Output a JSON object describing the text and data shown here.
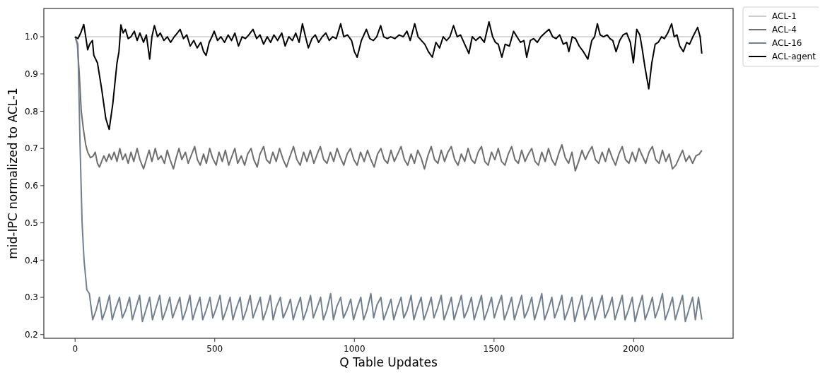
{
  "chart_data": {
    "type": "line",
    "xlabel": "Q Table Updates",
    "ylabel": "mid-IPC normalized to ACL-1",
    "xlim": [
      -112,
      2356
    ],
    "ylim": [
      0.19,
      1.076
    ],
    "xticks": [
      0,
      500,
      1000,
      1500,
      2000
    ],
    "yticks": [
      0.2,
      0.3,
      0.4,
      0.5,
      0.6,
      0.7,
      0.8,
      0.9,
      {
        "value": 1,
        "label": "1.0"
      }
    ],
    "grid": false,
    "legend": "top right",
    "marker": "none",
    "line_style": "solid",
    "series": [
      {
        "name": "ACL-1",
        "color": "#cccccc",
        "x": [
          0,
          2244
        ],
        "values": [
          1,
          1
        ]
      },
      {
        "name": "ACL-4",
        "color": "#6e6e6e",
        "x": [
          0,
          8,
          15,
          22,
          30,
          38,
          45,
          55,
          65,
          72,
          80,
          87,
          95,
          103,
          112,
          122,
          130,
          140,
          150,
          160,
          170,
          180,
          190,
          200,
          210,
          222,
          232,
          245,
          255,
          265,
          275,
          287,
          297,
          308,
          320,
          330,
          340,
          352,
          362,
          372,
          382,
          395,
          405,
          415,
          428,
          438,
          448,
          460,
          470,
          482,
          492,
          505,
          515,
          527,
          538,
          550,
          562,
          572,
          582,
          595,
          607,
          618,
          630,
          640,
          652,
          662,
          675,
          685,
          697,
          708,
          720,
          732,
          745,
          757,
          770,
          782,
          794,
          806,
          818,
          830,
          842,
          855,
          867,
          878,
          890,
          902,
          914,
          926,
          938,
          950,
          962,
          974,
          986,
          998,
          1010,
          1022,
          1035,
          1047,
          1059,
          1071,
          1083,
          1095,
          1107,
          1119,
          1131,
          1143,
          1155,
          1167,
          1179,
          1191,
          1203,
          1215,
          1227,
          1239,
          1251,
          1263,
          1275,
          1287,
          1299,
          1311,
          1323,
          1335,
          1347,
          1359,
          1371,
          1383,
          1395,
          1407,
          1419,
          1431,
          1443,
          1455,
          1467,
          1479,
          1491,
          1503,
          1515,
          1527,
          1539,
          1551,
          1563,
          1575,
          1587,
          1599,
          1611,
          1623,
          1635,
          1647,
          1659,
          1671,
          1683,
          1695,
          1707,
          1719,
          1731,
          1743,
          1755,
          1767,
          1779,
          1791,
          1803,
          1815,
          1827,
          1839,
          1851,
          1863,
          1875,
          1887,
          1899,
          1911,
          1923,
          1935,
          1947,
          1959,
          1971,
          1983,
          1995,
          2007,
          2019,
          2031,
          2043,
          2055,
          2067,
          2079,
          2091,
          2103,
          2115,
          2127,
          2139,
          2151,
          2163,
          2175,
          2187,
          2199,
          2211,
          2223,
          2235,
          2244
        ],
        "values": [
          1,
          0.98,
          0.9,
          0.8,
          0.75,
          0.71,
          0.69,
          0.675,
          0.68,
          0.69,
          0.66,
          0.65,
          0.665,
          0.68,
          0.665,
          0.685,
          0.67,
          0.69,
          0.665,
          0.7,
          0.67,
          0.685,
          0.66,
          0.69,
          0.665,
          0.7,
          0.67,
          0.645,
          0.67,
          0.695,
          0.665,
          0.7,
          0.67,
          0.68,
          0.66,
          0.695,
          0.67,
          0.645,
          0.675,
          0.7,
          0.67,
          0.69,
          0.66,
          0.68,
          0.705,
          0.67,
          0.655,
          0.685,
          0.66,
          0.7,
          0.675,
          0.655,
          0.69,
          0.665,
          0.695,
          0.655,
          0.68,
          0.7,
          0.66,
          0.68,
          0.655,
          0.685,
          0.7,
          0.67,
          0.65,
          0.685,
          0.705,
          0.67,
          0.66,
          0.69,
          0.665,
          0.7,
          0.67,
          0.65,
          0.68,
          0.705,
          0.67,
          0.655,
          0.69,
          0.665,
          0.695,
          0.66,
          0.685,
          0.705,
          0.67,
          0.66,
          0.69,
          0.665,
          0.7,
          0.675,
          0.655,
          0.685,
          0.7,
          0.67,
          0.655,
          0.69,
          0.665,
          0.695,
          0.67,
          0.65,
          0.685,
          0.7,
          0.67,
          0.66,
          0.695,
          0.665,
          0.685,
          0.705,
          0.67,
          0.655,
          0.685,
          0.66,
          0.695,
          0.675,
          0.645,
          0.68,
          0.705,
          0.67,
          0.66,
          0.695,
          0.665,
          0.69,
          0.705,
          0.67,
          0.655,
          0.685,
          0.665,
          0.7,
          0.67,
          0.66,
          0.69,
          0.705,
          0.665,
          0.655,
          0.69,
          0.67,
          0.7,
          0.665,
          0.655,
          0.685,
          0.705,
          0.67,
          0.66,
          0.695,
          0.665,
          0.685,
          0.7,
          0.665,
          0.655,
          0.69,
          0.665,
          0.7,
          0.67,
          0.655,
          0.685,
          0.71,
          0.675,
          0.66,
          0.69,
          0.64,
          0.665,
          0.695,
          0.67,
          0.69,
          0.705,
          0.67,
          0.66,
          0.69,
          0.665,
          0.7,
          0.675,
          0.655,
          0.685,
          0.705,
          0.67,
          0.66,
          0.69,
          0.665,
          0.7,
          0.68,
          0.66,
          0.69,
          0.705,
          0.67,
          0.66,
          0.695,
          0.665,
          0.685,
          0.645,
          0.655,
          0.675,
          0.695,
          0.665,
          0.68,
          0.66,
          0.68,
          0.685,
          0.695
        ]
      },
      {
        "name": "ACL-16",
        "color": "#708090",
        "x": [
          0,
          10,
          18,
          25,
          32,
          42,
          51,
          63,
          75,
          87,
          97,
          109,
          123,
          133,
          145,
          159,
          169,
          181,
          195,
          205,
          217,
          231,
          241,
          253,
          267,
          277,
          289,
          303,
          313,
          325,
          339,
          349,
          361,
          375,
          385,
          397,
          411,
          421,
          433,
          447,
          457,
          469,
          483,
          493,
          505,
          519,
          529,
          541,
          555,
          565,
          577,
          591,
          601,
          613,
          627,
          637,
          649,
          663,
          673,
          685,
          699,
          709,
          721,
          735,
          745,
          757,
          771,
          781,
          793,
          807,
          817,
          829,
          843,
          853,
          865,
          879,
          889,
          901,
          915,
          925,
          937,
          951,
          961,
          973,
          987,
          997,
          1009,
          1023,
          1033,
          1045,
          1059,
          1069,
          1081,
          1095,
          1105,
          1117,
          1131,
          1141,
          1153,
          1167,
          1177,
          1189,
          1203,
          1213,
          1225,
          1239,
          1249,
          1261,
          1275,
          1285,
          1297,
          1311,
          1321,
          1333,
          1347,
          1357,
          1369,
          1383,
          1393,
          1405,
          1419,
          1429,
          1441,
          1455,
          1465,
          1477,
          1491,
          1501,
          1513,
          1527,
          1537,
          1549,
          1563,
          1573,
          1585,
          1599,
          1609,
          1621,
          1635,
          1645,
          1657,
          1671,
          1681,
          1693,
          1707,
          1717,
          1729,
          1743,
          1753,
          1765,
          1779,
          1789,
          1801,
          1815,
          1825,
          1837,
          1851,
          1861,
          1873,
          1887,
          1897,
          1909,
          1923,
          1933,
          1945,
          1959,
          1969,
          1981,
          1995,
          2005,
          2017,
          2031,
          2041,
          2053,
          2067,
          2077,
          2089,
          2103,
          2113,
          2125,
          2139,
          2149,
          2161,
          2175,
          2185,
          2197,
          2211,
          2221,
          2232,
          2244
        ],
        "values": [
          1,
          0.98,
          0.7,
          0.5,
          0.4,
          0.32,
          0.31,
          0.24,
          0.265,
          0.3,
          0.24,
          0.265,
          0.305,
          0.24,
          0.27,
          0.3,
          0.245,
          0.265,
          0.3,
          0.24,
          0.27,
          0.305,
          0.235,
          0.265,
          0.3,
          0.24,
          0.27,
          0.305,
          0.24,
          0.265,
          0.3,
          0.245,
          0.27,
          0.3,
          0.24,
          0.265,
          0.305,
          0.24,
          0.27,
          0.3,
          0.24,
          0.265,
          0.3,
          0.245,
          0.27,
          0.305,
          0.24,
          0.265,
          0.3,
          0.24,
          0.27,
          0.3,
          0.24,
          0.265,
          0.305,
          0.245,
          0.27,
          0.3,
          0.24,
          0.265,
          0.305,
          0.24,
          0.275,
          0.3,
          0.245,
          0.265,
          0.295,
          0.24,
          0.27,
          0.3,
          0.24,
          0.265,
          0.305,
          0.245,
          0.27,
          0.3,
          0.24,
          0.265,
          0.31,
          0.24,
          0.275,
          0.3,
          0.245,
          0.265,
          0.295,
          0.24,
          0.27,
          0.3,
          0.24,
          0.265,
          0.31,
          0.245,
          0.28,
          0.3,
          0.24,
          0.265,
          0.295,
          0.24,
          0.27,
          0.3,
          0.245,
          0.265,
          0.305,
          0.24,
          0.27,
          0.3,
          0.24,
          0.265,
          0.3,
          0.245,
          0.27,
          0.305,
          0.24,
          0.265,
          0.3,
          0.24,
          0.27,
          0.305,
          0.245,
          0.265,
          0.3,
          0.24,
          0.27,
          0.305,
          0.24,
          0.265,
          0.3,
          0.245,
          0.275,
          0.305,
          0.24,
          0.265,
          0.3,
          0.24,
          0.27,
          0.305,
          0.245,
          0.265,
          0.3,
          0.24,
          0.27,
          0.31,
          0.24,
          0.265,
          0.3,
          0.245,
          0.27,
          0.305,
          0.24,
          0.265,
          0.3,
          0.235,
          0.27,
          0.305,
          0.24,
          0.265,
          0.3,
          0.24,
          0.27,
          0.305,
          0.245,
          0.265,
          0.3,
          0.24,
          0.27,
          0.305,
          0.24,
          0.265,
          0.3,
          0.235,
          0.27,
          0.305,
          0.24,
          0.265,
          0.3,
          0.245,
          0.27,
          0.31,
          0.24,
          0.265,
          0.3,
          0.24,
          0.27,
          0.305,
          0.235,
          0.265,
          0.3,
          0.24,
          0.3,
          0.24
        ]
      },
      {
        "name": "ACL-agent",
        "color": "#000000",
        "x": [
          0,
          10,
          20,
          31,
          38,
          45,
          52,
          62,
          67,
          80,
          95,
          110,
          122,
          135,
          150,
          157,
          164,
          172,
          180,
          190,
          200,
          212,
          222,
          232,
          245,
          255,
          267,
          275,
          284,
          295,
          305,
          318,
          330,
          342,
          355,
          366,
          376,
          388,
          400,
          412,
          425,
          437,
          450,
          460,
          469,
          480,
          490,
          498,
          510,
          522,
          535,
          548,
          560,
          572,
          585,
          598,
          610,
          622,
          637,
          650,
          662,
          675,
          688,
          700,
          712,
          725,
          740,
          752,
          765,
          778,
          790,
          802,
          814,
          825,
          835,
          848,
          860,
          872,
          885,
          898,
          910,
          922,
          935,
          951,
          962,
          975,
          990,
          1000,
          1010,
          1025,
          1043,
          1055,
          1068,
          1080,
          1094,
          1105,
          1118,
          1130,
          1145,
          1160,
          1175,
          1188,
          1200,
          1216,
          1228,
          1240,
          1252,
          1265,
          1279,
          1292,
          1305,
          1318,
          1330,
          1342,
          1355,
          1368,
          1380,
          1395,
          1410,
          1422,
          1435,
          1450,
          1465,
          1482,
          1495,
          1505,
          1515,
          1528,
          1540,
          1555,
          1570,
          1582,
          1595,
          1607,
          1617,
          1630,
          1642,
          1655,
          1668,
          1682,
          1697,
          1710,
          1722,
          1735,
          1748,
          1760,
          1768,
          1780,
          1792,
          1805,
          1820,
          1836,
          1850,
          1860,
          1870,
          1880,
          1892,
          1905,
          1915,
          1925,
          1937,
          1950,
          1962,
          1975,
          1988,
          1999,
          2011,
          2022,
          2030,
          2040,
          2054,
          2065,
          2077,
          2088,
          2100,
          2110,
          2122,
          2136,
          2145,
          2155,
          2165,
          2178,
          2190,
          2200,
          2212,
          2229,
          2238,
          2244
        ],
        "values": [
          1,
          0.995,
          1.01,
          1.033,
          1,
          0.965,
          0.98,
          0.99,
          0.95,
          0.93,
          0.86,
          0.78,
          0.751,
          0.82,
          0.93,
          0.96,
          1.032,
          1.01,
          1.02,
          0.995,
          1,
          1.015,
          0.99,
          1.01,
          0.985,
          1.005,
          0.94,
          1,
          1.03,
          1,
          1.01,
          0.99,
          1,
          0.985,
          1,
          1.01,
          1.02,
          0.995,
          1.005,
          0.975,
          0.99,
          0.97,
          0.985,
          0.96,
          0.95,
          0.985,
          1,
          1.015,
          0.99,
          1,
          0.985,
          1.005,
          0.99,
          1.01,
          0.975,
          1,
          0.995,
          1.005,
          1.02,
          0.995,
          1.005,
          0.98,
          1,
          0.985,
          1.005,
          0.99,
          1.01,
          0.975,
          1,
          0.99,
          1.01,
          0.985,
          1.035,
          1,
          0.97,
          0.995,
          1.005,
          0.985,
          1,
          1.01,
          0.99,
          1,
          0.995,
          1.035,
          1,
          1.005,
          0.99,
          0.96,
          0.945,
          0.99,
          1.02,
          0.995,
          0.99,
          1,
          1.03,
          1,
          0.995,
          1,
          0.995,
          1.005,
          1,
          1.015,
          0.99,
          1.035,
          1,
          0.99,
          0.98,
          0.96,
          0.945,
          0.985,
          0.97,
          1,
          0.99,
          1,
          1.03,
          1,
          1.005,
          0.98,
          0.955,
          1,
          0.99,
          1,
          0.985,
          1.04,
          1,
          0.985,
          0.98,
          0.945,
          0.98,
          0.975,
          1.015,
          1,
          0.985,
          0.99,
          0.945,
          0.99,
          0.995,
          0.985,
          1,
          1.01,
          1.02,
          1,
          0.995,
          1.005,
          0.98,
          0.985,
          0.96,
          1,
          0.995,
          0.975,
          0.96,
          0.94,
          0.99,
          1,
          1.035,
          1.005,
          1,
          1.005,
          0.995,
          0.99,
          0.96,
          0.99,
          1.005,
          1.01,
          0.985,
          0.93,
          1.02,
          1.005,
          0.97,
          0.92,
          0.86,
          0.93,
          0.98,
          0.985,
          1,
          0.995,
          1.01,
          1.035,
          1,
          1.005,
          0.975,
          0.96,
          0.985,
          0.98,
          1,
          1.025,
          1,
          0.955
        ]
      }
    ]
  }
}
